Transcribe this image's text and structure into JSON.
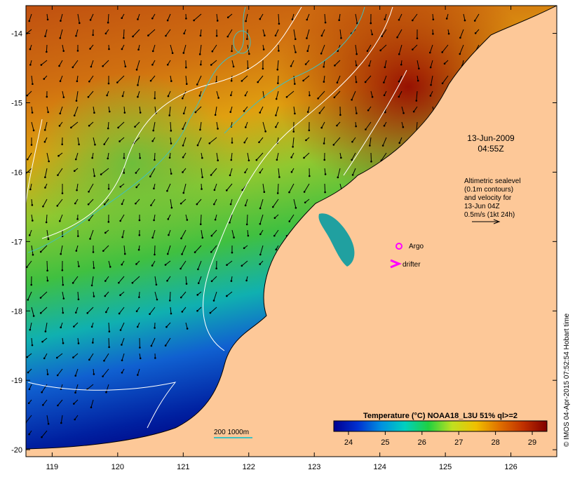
{
  "map": {
    "lon_range": [
      118.6,
      126.7
    ],
    "lat_range": [
      -20.1,
      -13.6
    ],
    "lon_ticks": [
      "119",
      "120",
      "121",
      "122",
      "123",
      "124",
      "125",
      "126"
    ],
    "lat_ticks": [
      "-14",
      "-15",
      "-16",
      "-17",
      "-18",
      "-19",
      "-20"
    ]
  },
  "timestamp": {
    "date": "13-Jun-2009",
    "time": "04:55Z"
  },
  "altimetry_note": {
    "lines": [
      "Altimetric sealevel",
      "(0.1m contours)",
      "and velocity for",
      "13-Jun 04Z",
      "0.5m/s (1kt 24h)"
    ]
  },
  "legend": {
    "argo_label": "Argo",
    "drifter_label": "drifter",
    "argo_color": "#ff00ff",
    "drifter_color": "#ff00ff",
    "depth_label": "200  1000m",
    "depth_color": "#40c0c0"
  },
  "colorbar": {
    "title": "Temperature (°C) NOAA18_L3U 51% ql>=2",
    "ticks": [
      "24",
      "25",
      "26",
      "27",
      "28",
      "29"
    ],
    "range": [
      23.6,
      29.4
    ],
    "colors": [
      "#000090",
      "#0030d0",
      "#0090e0",
      "#00d0c0",
      "#20d040",
      "#c0e020",
      "#f0c000",
      "#e07000",
      "#c03000",
      "#800000"
    ]
  },
  "land_color": "#fdc898",
  "credit": "© IMOS 04-Apr-2015 07:52:54 Hobart time"
}
